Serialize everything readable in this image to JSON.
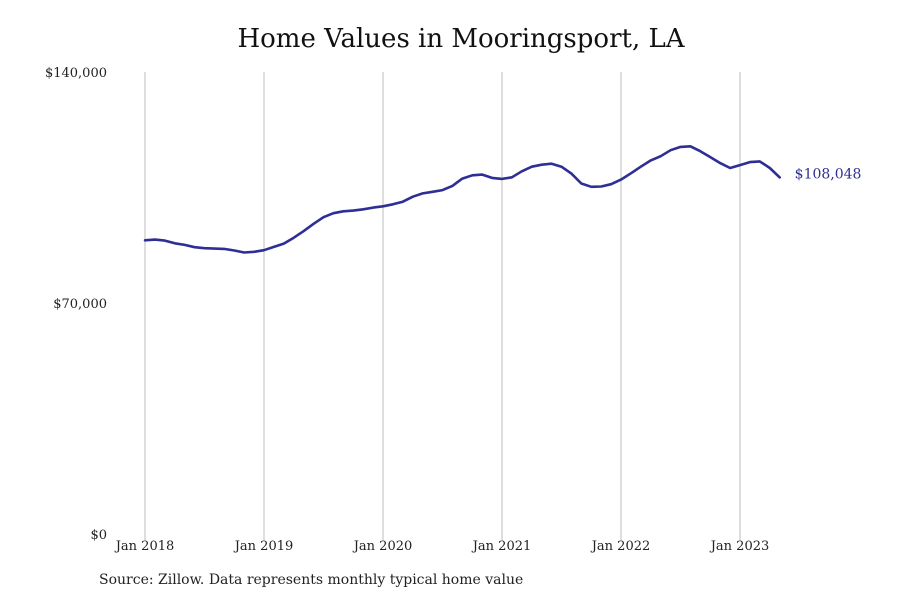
{
  "chart_data": {
    "type": "line",
    "title": "Home Values in Mooringsport, LA",
    "xlabel": "",
    "ylabel": "",
    "ylim": [
      0,
      140000
    ],
    "y_ticks": [
      0,
      70000,
      140000
    ],
    "y_tick_labels": [
      "$0",
      "$70,000",
      "$140,000"
    ],
    "x_ticks": [
      "2018-01",
      "2019-01",
      "2020-01",
      "2021-01",
      "2022-01",
      "2023-01"
    ],
    "x_tick_labels": [
      "Jan 2018",
      "Jan 2019",
      "Jan 2020",
      "Jan 2021",
      "Jan 2022",
      "Jan 2023"
    ],
    "grid": "vertical",
    "legend": "none",
    "end_label": "$108,048",
    "colors": {
      "line": "#2e2e94",
      "end_label": "#2e2e94",
      "grid": "#bdbdbd",
      "text": "#222222"
    },
    "series": [
      {
        "x": [
          "2018-01",
          "2018-02",
          "2018-03",
          "2018-04",
          "2018-05",
          "2018-06",
          "2018-07",
          "2018-08",
          "2018-09",
          "2018-10",
          "2018-11",
          "2018-12",
          "2019-01",
          "2019-02",
          "2019-03",
          "2019-04",
          "2019-05",
          "2019-06",
          "2019-07",
          "2019-08",
          "2019-09",
          "2019-10",
          "2019-11",
          "2019-12",
          "2020-01",
          "2020-02",
          "2020-03",
          "2020-04",
          "2020-05",
          "2020-06",
          "2020-07",
          "2020-08",
          "2020-09",
          "2020-10",
          "2020-11",
          "2020-12",
          "2021-01",
          "2021-02",
          "2021-03",
          "2021-04",
          "2021-05",
          "2021-06",
          "2021-07",
          "2021-08",
          "2021-09",
          "2021-10",
          "2021-11",
          "2021-12",
          "2022-01",
          "2022-02",
          "2022-03",
          "2022-04",
          "2022-05",
          "2022-06",
          "2022-07",
          "2022-08",
          "2022-09",
          "2022-10",
          "2022-11",
          "2022-12",
          "2023-01",
          "2023-02",
          "2023-03",
          "2023-04",
          "2023-05"
        ],
        "values": [
          89000,
          89200,
          88900,
          88100,
          87600,
          86900,
          86600,
          86500,
          86400,
          85900,
          85300,
          85500,
          86000,
          87000,
          88000,
          89800,
          91800,
          94000,
          96000,
          97200,
          97800,
          98000,
          98400,
          98900,
          99300,
          99900,
          100700,
          102200,
          103200,
          103700,
          104200,
          105500,
          107700,
          108700,
          108900,
          107900,
          107600,
          108100,
          109900,
          111300,
          111900,
          112200,
          111300,
          109200,
          106200,
          105200,
          105300,
          106000,
          107400,
          109300,
          111300,
          113200,
          114500,
          116300,
          117300,
          117500,
          116000,
          114200,
          112400,
          110900,
          111800,
          112700,
          112900,
          110900,
          108048
        ]
      }
    ]
  },
  "source_note": "Source: Zillow. Data represents monthly typical home value"
}
